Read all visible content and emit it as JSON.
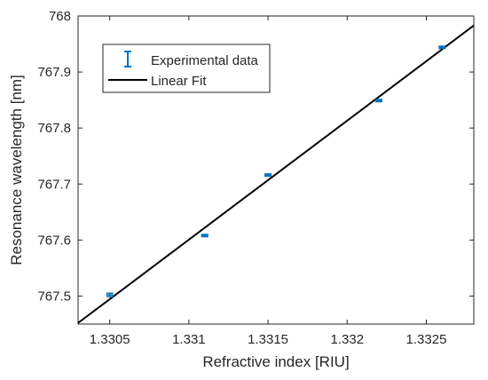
{
  "chart_data": {
    "type": "scatter",
    "title": "",
    "xlabel": "Refractive index [RIU]",
    "ylabel": "Resonance wavelength [nm]",
    "xlim": [
      1.3303,
      1.3328
    ],
    "ylim": [
      767.45,
      768.0
    ],
    "xticks": [
      1.3305,
      1.331,
      1.3315,
      1.332,
      1.3325
    ],
    "xtick_labels": [
      "1.3305",
      "1.331",
      "1.3315",
      "1.332",
      "1.3325"
    ],
    "yticks": [
      767.5,
      767.6,
      767.7,
      767.8,
      767.9,
      768.0
    ],
    "ytick_labels": [
      "767.5",
      "767.6",
      "767.7",
      "767.8",
      "767.9",
      "768"
    ],
    "legend_position": "top-left",
    "grid": false,
    "series": [
      {
        "name": "Experimental data",
        "kind": "errorbar",
        "color": "#0072BD",
        "x": [
          1.3305,
          1.3311,
          1.3315,
          1.3322,
          1.3326
        ],
        "y": [
          767.502,
          767.608,
          767.716,
          767.849,
          767.944
        ],
        "err": [
          0.003,
          0.002,
          0.002,
          0.002,
          0.002
        ]
      },
      {
        "name": "Linear Fit",
        "kind": "line",
        "color": "#000000",
        "x": [
          1.3303,
          1.3328
        ],
        "y": [
          767.452,
          767.983
        ]
      }
    ]
  }
}
